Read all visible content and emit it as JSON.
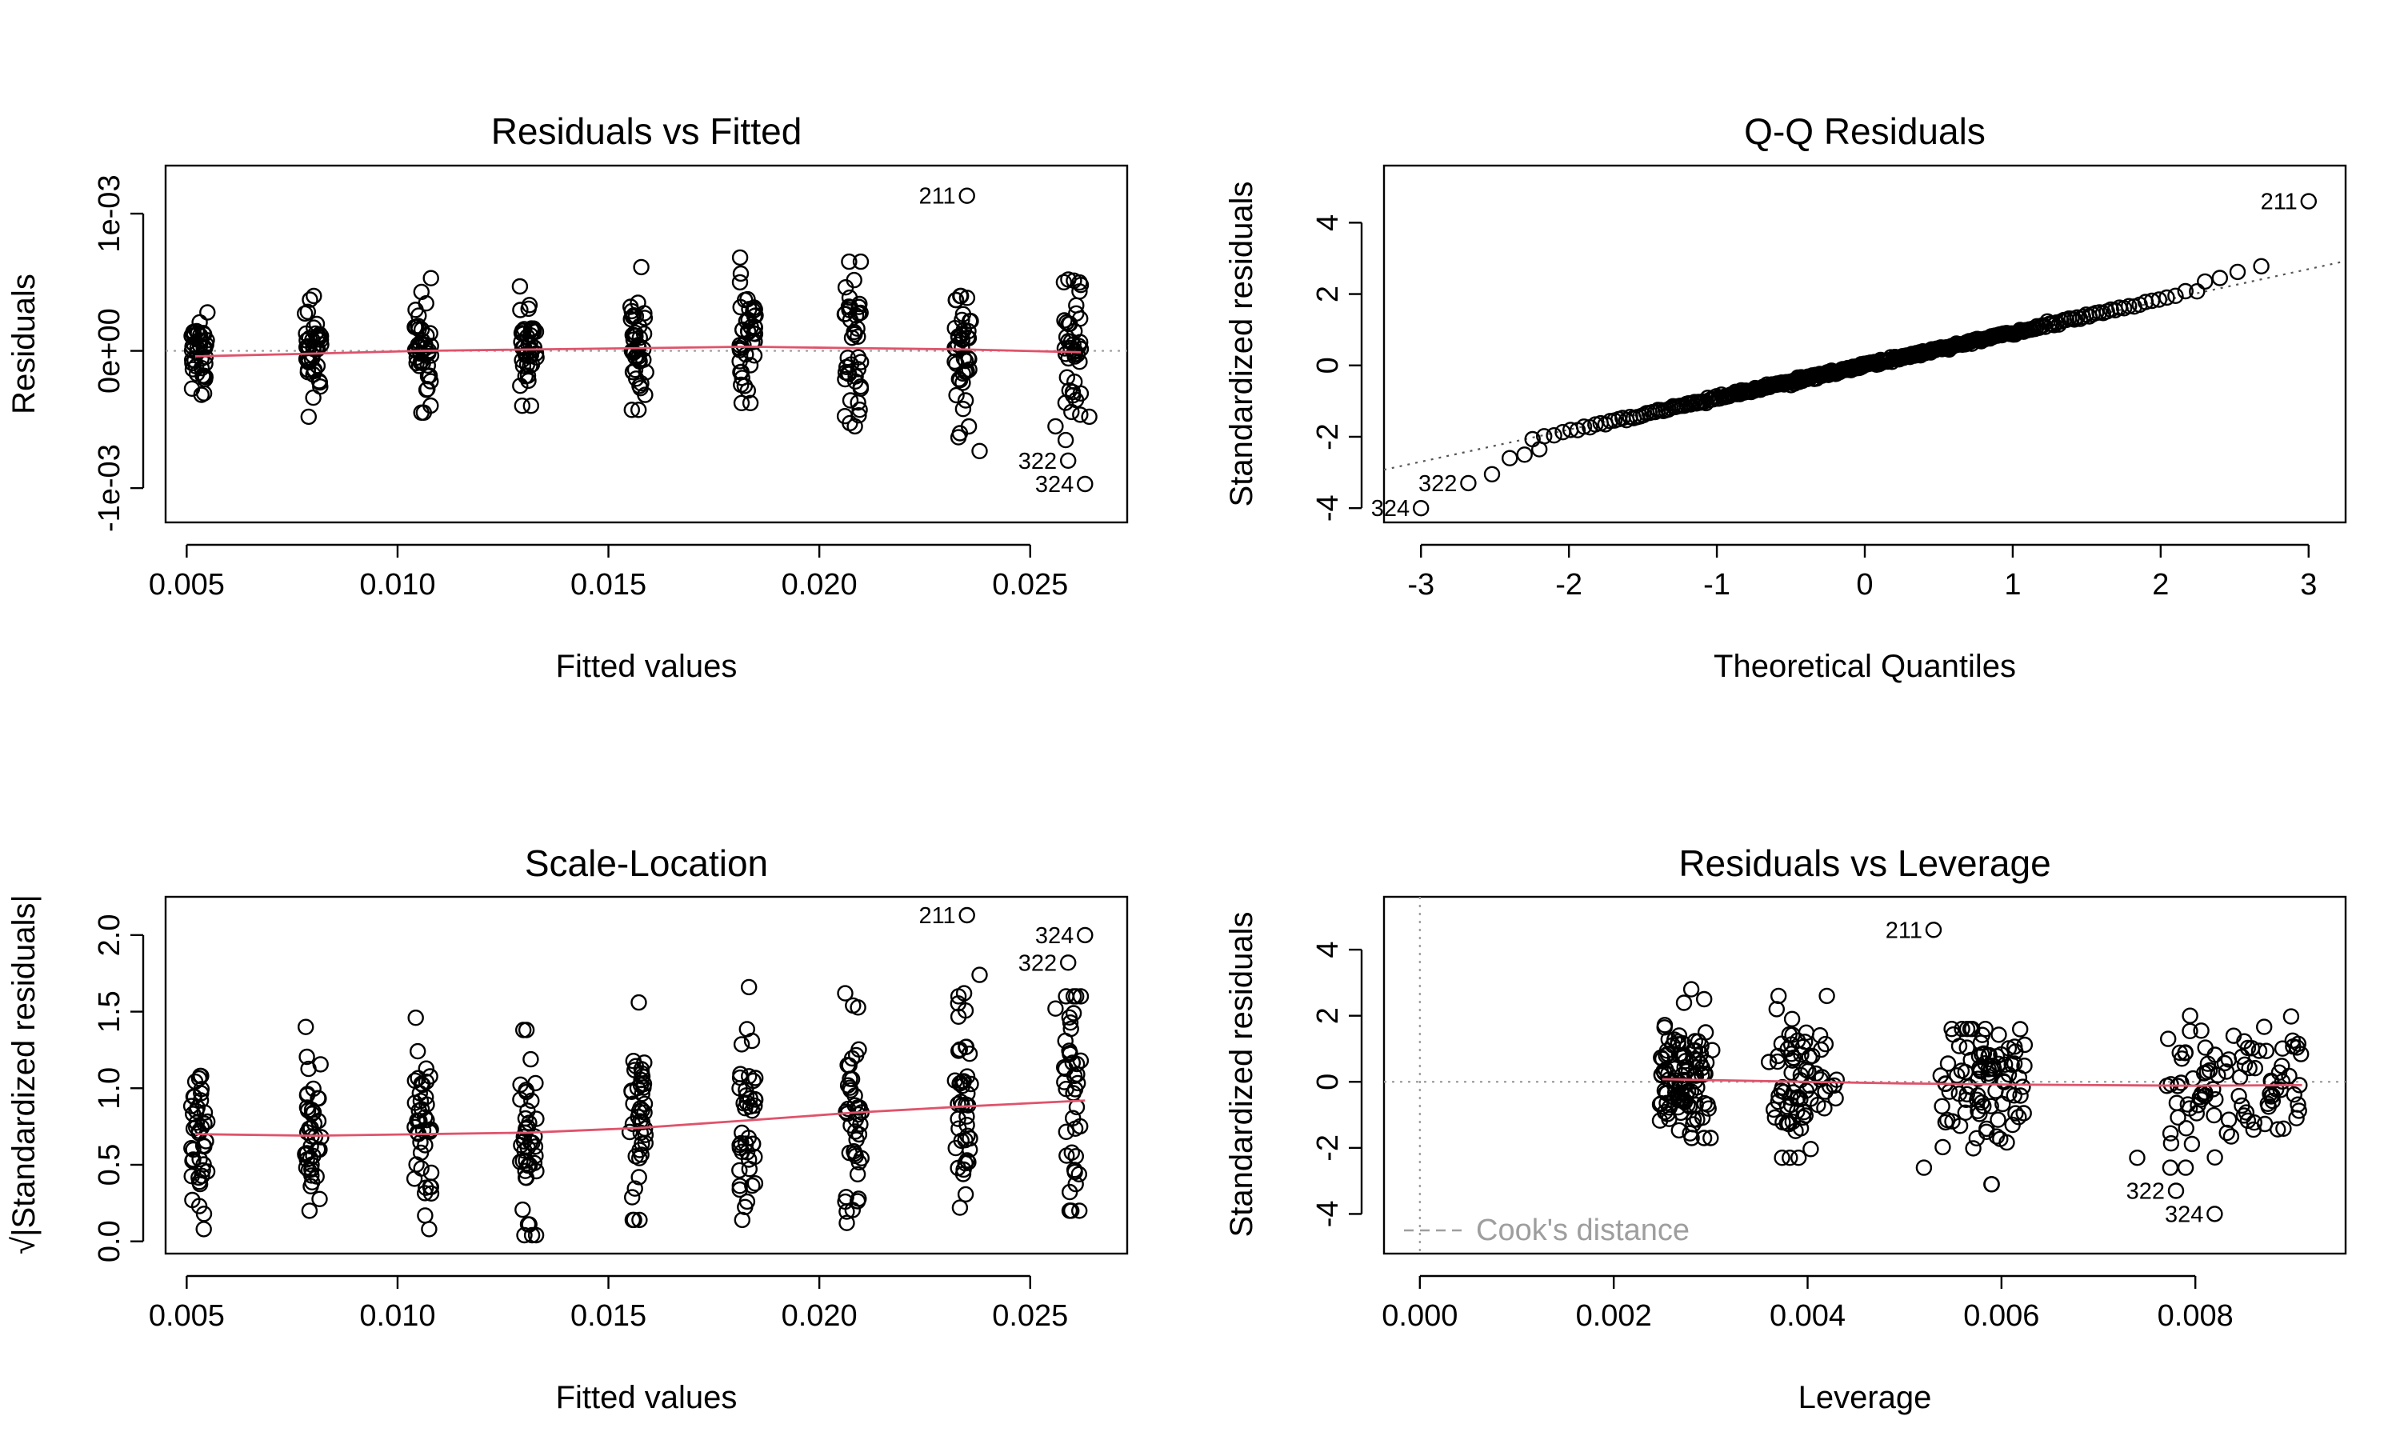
{
  "colors": {
    "smoother": "#DF536B",
    "reference": "#9E9E9E",
    "point": "#000000"
  },
  "chart_data": [
    {
      "id": "rvf",
      "type": "scatter",
      "title": "Residuals vs Fitted",
      "xlabel": "Fitted values",
      "ylabel": "Residuals",
      "xlim": [
        0.0045,
        0.0273
      ],
      "ylim": [
        -0.00125,
        0.00135
      ],
      "xticks": [
        {
          "v": 0.005,
          "label": "0.005"
        },
        {
          "v": 0.01,
          "label": "0.010"
        },
        {
          "v": 0.015,
          "label": "0.015"
        },
        {
          "v": 0.02,
          "label": "0.020"
        },
        {
          "v": 0.025,
          "label": "0.025"
        }
      ],
      "yticks": [
        {
          "v": -0.001,
          "label": "-1e-03"
        },
        {
          "v": 0,
          "label": "0e+00"
        },
        {
          "v": 0.001,
          "label": "1e-03"
        }
      ],
      "reference_lines": [
        {
          "orientation": "h",
          "value": 0
        }
      ],
      "smoother": [
        [
          0.0052,
          -4e-05
        ],
        [
          0.008,
          -2e-05
        ],
        [
          0.0105,
          0.0
        ],
        [
          0.0131,
          1e-05
        ],
        [
          0.0158,
          2e-05
        ],
        [
          0.0183,
          3e-05
        ],
        [
          0.0208,
          2e-05
        ],
        [
          0.0235,
          1e-05
        ],
        [
          0.0262,
          -1e-05
        ]
      ],
      "groups": [
        {
          "center": 0.0053,
          "spread": 0.0004,
          "n": 42,
          "min": -0.00032,
          "max": 0.00028,
          "mean": -3e-05,
          "sd": 0.00014
        },
        {
          "center": 0.008,
          "spread": 0.0004,
          "n": 42,
          "min": -0.00048,
          "max": 0.0004,
          "mean": -2e-05,
          "sd": 0.00017
        },
        {
          "center": 0.0106,
          "spread": 0.0004,
          "n": 42,
          "min": -0.00045,
          "max": 0.00053,
          "mean": 0.0,
          "sd": 0.00019
        },
        {
          "center": 0.0131,
          "spread": 0.0004,
          "n": 42,
          "min": -0.0004,
          "max": 0.00047,
          "mean": 1e-05,
          "sd": 0.00017
        },
        {
          "center": 0.0157,
          "spread": 0.0004,
          "n": 42,
          "min": -0.00043,
          "max": 0.00061,
          "mean": 2e-05,
          "sd": 0.00021
        },
        {
          "center": 0.0183,
          "spread": 0.0004,
          "n": 42,
          "min": -0.00038,
          "max": 0.00068,
          "mean": 3e-05,
          "sd": 0.00022
        },
        {
          "center": 0.0208,
          "spread": 0.0004,
          "n": 42,
          "min": -0.00055,
          "max": 0.00065,
          "mean": 2e-05,
          "sd": 0.00025
        },
        {
          "center": 0.0234,
          "spread": 0.0004,
          "n": 41,
          "min": -0.0006,
          "max": 0.0004,
          "mean": 1e-05,
          "sd": 0.00024
        },
        {
          "center": 0.026,
          "spread": 0.0004,
          "n": 40,
          "min": -0.00065,
          "max": 0.00052,
          "mean": -1e-05,
          "sd": 0.00027
        }
      ],
      "labeled_points": [
        {
          "label": "211",
          "x": 0.0235,
          "y": 0.00113
        },
        {
          "label": "322",
          "x": 0.0259,
          "y": -0.0008
        },
        {
          "label": "324",
          "x": 0.0263,
          "y": -0.00097
        }
      ],
      "extra_points": [
        [
          0.0238,
          -0.00073
        ],
        [
          0.0233,
          -0.00063
        ],
        [
          0.0256,
          -0.00055
        ],
        [
          0.0264,
          -0.00048
        ],
        [
          0.0262,
          0.00048
        ],
        [
          0.0258,
          0.0005
        ]
      ]
    },
    {
      "id": "qq",
      "type": "scatter",
      "title": "Q-Q Residuals",
      "xlabel": "Theoretical Quantiles",
      "ylabel": "Standardized residuals",
      "xlim": [
        -3.25,
        3.25
      ],
      "ylim": [
        -4.4,
        5.6
      ],
      "xticks": [
        {
          "v": -3,
          "label": "-3"
        },
        {
          "v": -2,
          "label": "-2"
        },
        {
          "v": -1,
          "label": "-1"
        },
        {
          "v": 0,
          "label": "0"
        },
        {
          "v": 1,
          "label": "1"
        },
        {
          "v": 2,
          "label": "2"
        },
        {
          "v": 3,
          "label": "3"
        }
      ],
      "yticks": [
        {
          "v": -4,
          "label": "-4"
        },
        {
          "v": -2,
          "label": "-2"
        },
        {
          "v": 0,
          "label": "0"
        },
        {
          "v": 2,
          "label": "2"
        },
        {
          "v": 4,
          "label": "4"
        }
      ],
      "qq_line": {
        "intercept": 0.0,
        "slope": 0.9
      },
      "qq_n": 364,
      "qq_slope": 0.92,
      "labeled_points": [
        {
          "label": "211",
          "x": 3.0,
          "y": 4.6
        },
        {
          "label": "322",
          "x": -2.68,
          "y": -3.3
        },
        {
          "label": "324",
          "x": -3.0,
          "y": -4.0
        }
      ],
      "extra_points": [
        [
          2.68,
          2.78
        ],
        [
          2.52,
          2.62
        ],
        [
          2.4,
          2.45
        ],
        [
          2.3,
          2.35
        ],
        [
          -2.52,
          -3.05
        ],
        [
          -2.4,
          -2.6
        ],
        [
          -2.3,
          -2.5
        ],
        [
          -2.2,
          -2.35
        ]
      ]
    },
    {
      "id": "sl",
      "type": "scatter",
      "title": "Scale-Location",
      "xlabel": "Fitted values",
      "ylabel": "√|Standardized residuals|",
      "xlim": [
        0.0045,
        0.0273
      ],
      "ylim": [
        -0.08,
        2.25
      ],
      "xticks": [
        {
          "v": 0.005,
          "label": "0.005"
        },
        {
          "v": 0.01,
          "label": "0.010"
        },
        {
          "v": 0.015,
          "label": "0.015"
        },
        {
          "v": 0.02,
          "label": "0.020"
        },
        {
          "v": 0.025,
          "label": "0.025"
        }
      ],
      "yticks": [
        {
          "v": 0.0,
          "label": "0.0"
        },
        {
          "v": 0.5,
          "label": "0.5"
        },
        {
          "v": 1.0,
          "label": "1.0"
        },
        {
          "v": 1.5,
          "label": "1.5"
        },
        {
          "v": 2.0,
          "label": "2.0"
        }
      ],
      "smoother": [
        [
          0.0052,
          0.7
        ],
        [
          0.008,
          0.69
        ],
        [
          0.0106,
          0.7
        ],
        [
          0.0131,
          0.71
        ],
        [
          0.0157,
          0.74
        ],
        [
          0.0183,
          0.79
        ],
        [
          0.0208,
          0.84
        ],
        [
          0.0234,
          0.88
        ],
        [
          0.0263,
          0.92
        ]
      ],
      "groups": [
        {
          "center": 0.0053,
          "spread": 0.0004,
          "n": 42,
          "min": 0.08,
          "max": 1.08,
          "mean": 0.7,
          "sd": 0.22
        },
        {
          "center": 0.008,
          "spread": 0.0004,
          "n": 42,
          "min": 0.2,
          "max": 1.4,
          "mean": 0.69,
          "sd": 0.26
        },
        {
          "center": 0.0106,
          "spread": 0.0004,
          "n": 42,
          "min": 0.08,
          "max": 1.46,
          "mean": 0.7,
          "sd": 0.32
        },
        {
          "center": 0.0131,
          "spread": 0.0004,
          "n": 42,
          "min": 0.04,
          "max": 1.38,
          "mean": 0.71,
          "sd": 0.3
        },
        {
          "center": 0.0157,
          "spread": 0.0004,
          "n": 42,
          "min": 0.14,
          "max": 1.56,
          "mean": 0.74,
          "sd": 0.33
        },
        {
          "center": 0.0183,
          "spread": 0.0004,
          "n": 42,
          "min": 0.14,
          "max": 1.66,
          "mean": 0.79,
          "sd": 0.33
        },
        {
          "center": 0.0208,
          "spread": 0.0004,
          "n": 42,
          "min": 0.12,
          "max": 1.62,
          "mean": 0.84,
          "sd": 0.35
        },
        {
          "center": 0.0234,
          "spread": 0.0004,
          "n": 41,
          "min": 0.22,
          "max": 1.62,
          "mean": 0.88,
          "sd": 0.33
        },
        {
          "center": 0.026,
          "spread": 0.0004,
          "n": 40,
          "min": 0.2,
          "max": 1.6,
          "mean": 0.9,
          "sd": 0.35
        }
      ],
      "labeled_points": [
        {
          "label": "211",
          "x": 0.0235,
          "y": 2.13
        },
        {
          "label": "324",
          "x": 0.0263,
          "y": 2.0
        },
        {
          "label": "322",
          "x": 0.0259,
          "y": 1.82
        }
      ],
      "extra_points": [
        [
          0.0238,
          1.74
        ],
        [
          0.0233,
          1.6
        ],
        [
          0.0208,
          1.54
        ],
        [
          0.0262,
          1.6
        ],
        [
          0.0256,
          1.52
        ]
      ]
    },
    {
      "id": "rvl",
      "type": "scatter",
      "title": "Residuals vs Leverage",
      "xlabel": "Leverage",
      "ylabel": "Standardized residuals",
      "xlim": [
        -0.00037,
        0.00955
      ],
      "ylim": [
        -5.2,
        5.6
      ],
      "xticks": [
        {
          "v": 0.0,
          "label": "0.000"
        },
        {
          "v": 0.002,
          "label": "0.002"
        },
        {
          "v": 0.004,
          "label": "0.004"
        },
        {
          "v": 0.006,
          "label": "0.006"
        },
        {
          "v": 0.008,
          "label": "0.008"
        }
      ],
      "yticks": [
        {
          "v": -4,
          "label": "-4"
        },
        {
          "v": -2,
          "label": "-2"
        },
        {
          "v": 0,
          "label": "0"
        },
        {
          "v": 2,
          "label": "2"
        },
        {
          "v": 4,
          "label": "4"
        }
      ],
      "reference_lines": [
        {
          "orientation": "h",
          "value": 0
        },
        {
          "orientation": "v",
          "value": 0
        }
      ],
      "smoother": [
        [
          0.0025,
          0.08
        ],
        [
          0.003,
          0.05
        ],
        [
          0.004,
          0.0
        ],
        [
          0.005,
          -0.05
        ],
        [
          0.006,
          -0.08
        ],
        [
          0.007,
          -0.1
        ],
        [
          0.008,
          -0.12
        ],
        [
          0.0091,
          -0.1
        ]
      ],
      "groups": [
        {
          "center": 0.00275,
          "spread": 0.00055,
          "n": 100,
          "min": -1.7,
          "max": 2.5,
          "mean": 0.1,
          "sd": 0.9
        },
        {
          "center": 0.00395,
          "spread": 0.0007,
          "n": 70,
          "min": -2.3,
          "max": 2.6,
          "mean": 0.0,
          "sd": 1.0
        },
        {
          "center": 0.0058,
          "spread": 0.0009,
          "n": 90,
          "min": -3.1,
          "max": 1.6,
          "mean": -0.05,
          "sd": 0.95
        },
        {
          "center": 0.0084,
          "spread": 0.0014,
          "n": 95,
          "min": -2.6,
          "max": 2.0,
          "mean": -0.1,
          "sd": 0.95
        }
      ],
      "labeled_points": [
        {
          "label": "211",
          "x": 0.0053,
          "y": 4.6
        },
        {
          "label": "322",
          "x": 0.0078,
          "y": -3.3
        },
        {
          "label": "324",
          "x": 0.0082,
          "y": -4.0
        }
      ],
      "extra_points": [
        [
          0.0074,
          -2.3
        ],
        [
          0.0079,
          -2.6
        ],
        [
          0.0059,
          -3.1
        ],
        [
          0.0052,
          -2.6
        ],
        [
          0.0028,
          2.8
        ],
        [
          0.0037,
          2.6
        ]
      ],
      "legend": {
        "label": "Cook's distance",
        "position": "bottom-left"
      }
    }
  ]
}
